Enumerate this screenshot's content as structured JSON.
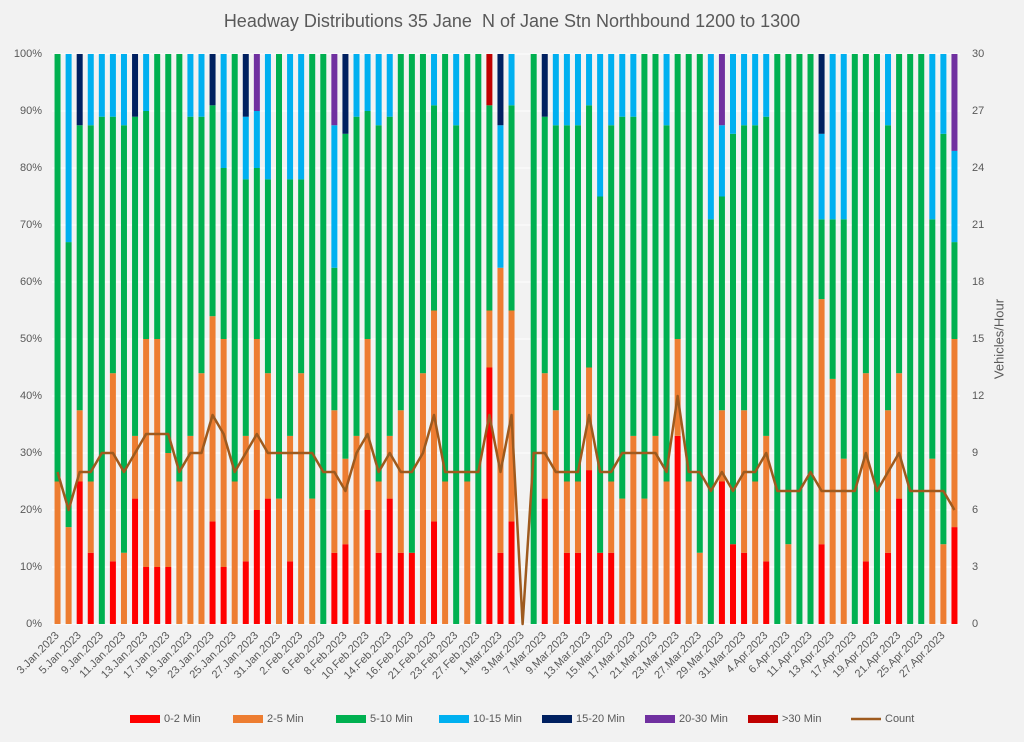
{
  "chart_data": {
    "type": "bar",
    "stacked": true,
    "title": "Headway Distributions 35 Jane  N of Jane Stn Northbound 1200 to 1300",
    "y2_label": "Vehicles/Hour",
    "categories": [
      "3.Jan.2023",
      null,
      "5.Jan.2023",
      null,
      "9.Jan.2023",
      null,
      "11.Jan.2023",
      null,
      "13.Jan.2023",
      null,
      "17.Jan.2023",
      null,
      "19.Jan.2023",
      null,
      "23.Jan.2023",
      null,
      "25.Jan.2023",
      null,
      "27.Jan.2023",
      null,
      "31.Jan.2023",
      null,
      "2.Feb.2023",
      null,
      "6.Feb.2023",
      null,
      "8.Feb.2023",
      null,
      "10.Feb.2023",
      null,
      "14.Feb.2023",
      null,
      "16.Feb.2023",
      null,
      "21.Feb.2023",
      null,
      "23.Feb.2023",
      null,
      "27.Feb.2023",
      null,
      "1.Mar.2023",
      null,
      "3.Mar.2023",
      null,
      "7.Mar.2023",
      null,
      "9.Mar.2023",
      null,
      "13.Mar.2023",
      null,
      "15.Mar.2023",
      null,
      "17.Mar.2023",
      null,
      "21.Mar.2023",
      null,
      "23.Mar.2023",
      null,
      "27.Mar.2023",
      null,
      "29.Mar.2023",
      null,
      "31.Mar.2023",
      null,
      "4.Apr.2023",
      null,
      "6.Apr.2023",
      null,
      "11.Apr.2023",
      null,
      "13.Apr.2023",
      null,
      "17.Apr.2023",
      null,
      "19.Apr.2023",
      null,
      "21.Apr.2023",
      null,
      "25.Apr.2023",
      null,
      "27.Apr.2023",
      null
    ],
    "series": [
      {
        "name": "0-2 Min",
        "color": "#ff0000",
        "values": [
          0,
          0,
          25,
          12.5,
          0,
          11,
          0,
          22,
          10,
          10,
          10,
          0,
          0,
          0,
          18,
          10,
          0,
          11,
          20,
          22,
          0,
          11,
          0,
          0,
          0,
          12.5,
          14,
          0,
          20,
          12.5,
          22,
          12.5,
          12.5,
          0,
          18,
          0,
          0,
          0,
          0,
          45,
          12.5,
          18,
          0,
          0,
          22,
          0,
          12.5,
          12.5,
          27,
          12.5,
          12.5,
          0,
          0,
          0,
          0,
          0,
          33,
          0,
          0,
          0,
          25,
          14,
          12.5,
          0,
          11,
          0,
          0,
          0,
          0,
          14,
          0,
          0,
          0,
          11,
          0,
          12.5,
          22,
          0,
          0,
          0,
          0,
          17
        ]
      },
      {
        "name": "2-5 Min",
        "color": "#ed7d31",
        "values": [
          25,
          17,
          12.5,
          12.5,
          0,
          33,
          12.5,
          11,
          40,
          40,
          20,
          25,
          33,
          44,
          36,
          40,
          25,
          22,
          30,
          22,
          22,
          22,
          44,
          22,
          0,
          25,
          15,
          33,
          30,
          12.5,
          11,
          25,
          0,
          44,
          37,
          25,
          0,
          25,
          0,
          10,
          50,
          37,
          0,
          0,
          22,
          37.5,
          12.5,
          12.5,
          18,
          0,
          12.5,
          22,
          33,
          22,
          33,
          25,
          17,
          25,
          12.5,
          0,
          12.5,
          0,
          25,
          25,
          22,
          0,
          14,
          0,
          0,
          43,
          43,
          29,
          0,
          33,
          0,
          25,
          22,
          0,
          0,
          29,
          14,
          33
        ]
      },
      {
        "name": "5-10 Min",
        "color": "#00b050",
        "values": [
          75,
          50,
          50,
          62.5,
          89,
          45,
          75,
          56,
          40,
          50,
          70,
          75,
          56,
          45,
          37,
          30,
          75,
          45,
          30,
          34,
          78,
          45,
          34,
          78,
          100,
          25,
          57,
          56,
          40,
          62.5,
          56,
          62.5,
          87.5,
          56,
          36,
          75,
          87.5,
          75,
          100,
          36,
          0,
          36,
          0,
          100,
          45,
          50,
          62.5,
          62.5,
          46,
          62.5,
          62.5,
          67,
          56,
          78,
          67,
          62.5,
          50,
          75,
          87.5,
          71,
          37.5,
          72,
          50,
          62.5,
          56,
          100,
          86,
          100,
          100,
          14,
          28,
          42,
          100,
          56,
          100,
          50,
          56,
          100,
          100,
          42,
          72,
          17
        ]
      },
      {
        "name": "10-15 Min",
        "color": "#00b0f0",
        "values": [
          0,
          33,
          0,
          12.5,
          11,
          11,
          12.5,
          0,
          10,
          0,
          0,
          0,
          11,
          11,
          0,
          20,
          0,
          11,
          10,
          22,
          0,
          22,
          22,
          0,
          0,
          25,
          0,
          11,
          10,
          12.5,
          11,
          0,
          0,
          0,
          9,
          0,
          12.5,
          0,
          0,
          0,
          25,
          9,
          0,
          0,
          0,
          12.5,
          12.5,
          12.5,
          9,
          25,
          12.5,
          11,
          11,
          0,
          0,
          12.5,
          0,
          0,
          0,
          29,
          12.5,
          14,
          12.5,
          12.5,
          11,
          0,
          0,
          0,
          0,
          15,
          29,
          29,
          0,
          0,
          0,
          12.5,
          0,
          0,
          0,
          29,
          14,
          16
        ]
      },
      {
        "name": "15-20 Min",
        "color": "#002060",
        "values": [
          0,
          0,
          12.5,
          0,
          0,
          0,
          0,
          11,
          0,
          0,
          0,
          0,
          0,
          0,
          9,
          0,
          0,
          11,
          0,
          0,
          0,
          0,
          0,
          0,
          0,
          0,
          14,
          0,
          0,
          0,
          0,
          0,
          0,
          0,
          0,
          0,
          0,
          0,
          0,
          0,
          12.5,
          0,
          0,
          0,
          11,
          0,
          0,
          0,
          0,
          0,
          0,
          0,
          0,
          0,
          0,
          0,
          0,
          0,
          0,
          0,
          0,
          0,
          0,
          0,
          0,
          0,
          0,
          0,
          0,
          14,
          0,
          0,
          0,
          0,
          0,
          0,
          0,
          0,
          0,
          0,
          0,
          0
        ]
      },
      {
        "name": "20-30 Min",
        "color": "#7030a0",
        "values": [
          0,
          0,
          0,
          0,
          0,
          0,
          0,
          0,
          0,
          0,
          0,
          0,
          0,
          0,
          0,
          0,
          0,
          0,
          10,
          0,
          0,
          0,
          0,
          0,
          0,
          12.5,
          0,
          0,
          0,
          0,
          0,
          0,
          0,
          0,
          0,
          0,
          0,
          0,
          0,
          0,
          0,
          0,
          0,
          0,
          0,
          0,
          0,
          0,
          0,
          0,
          0,
          0,
          0,
          0,
          0,
          0,
          0,
          0,
          0,
          0,
          12.5,
          0,
          0,
          0,
          0,
          0,
          0,
          0,
          0,
          0,
          0,
          0,
          0,
          0,
          0,
          0,
          0,
          0,
          0,
          0,
          0,
          17
        ]
      },
      {
        "name": ">30 Min",
        "color": "#c00000",
        "values": [
          0,
          0,
          0,
          0,
          0,
          0,
          0,
          0,
          0,
          0,
          0,
          0,
          0,
          0,
          0,
          0,
          0,
          0,
          0,
          0,
          0,
          0,
          0,
          0,
          0,
          0,
          0,
          0,
          0,
          0,
          0,
          0,
          0,
          0,
          0,
          0,
          0,
          0,
          0,
          9,
          0,
          0,
          0,
          0,
          0,
          0,
          0,
          0,
          0,
          0,
          0,
          0,
          0,
          0,
          0,
          0,
          0,
          0,
          0,
          0,
          0,
          0,
          0,
          0,
          0,
          0,
          0,
          0,
          0,
          0,
          0,
          0,
          0,
          0,
          0,
          0,
          0,
          0,
          0,
          0,
          0,
          0
        ]
      },
      {
        "name": "Count",
        "color": "#9e5a1e",
        "type": "line",
        "axis": "y2",
        "values": [
          8,
          6,
          8,
          8,
          9,
          9,
          8,
          9,
          10,
          10,
          10,
          8,
          9,
          9,
          11,
          10,
          8,
          9,
          10,
          9,
          9,
          9,
          9,
          9,
          8,
          8,
          7,
          9,
          10,
          8,
          9,
          8,
          8,
          9,
          11,
          8,
          8,
          8,
          8,
          11,
          8,
          11,
          0,
          9,
          9,
          8,
          8,
          8,
          11,
          8,
          8,
          9,
          9,
          9,
          9,
          8,
          12,
          8,
          8,
          7,
          8,
          7,
          8,
          8,
          9,
          7,
          7,
          7,
          8,
          7,
          7,
          7,
          7,
          9,
          7,
          8,
          9,
          7,
          7,
          7,
          7,
          6
        ]
      }
    ],
    "ylim": [
      0,
      100
    ],
    "yticks": [
      {
        "value": 0,
        "label": "0%"
      },
      {
        "value": 10,
        "label": "10%"
      },
      {
        "value": 20,
        "label": "20%"
      },
      {
        "value": 30,
        "label": "30%"
      },
      {
        "value": 40,
        "label": "40%"
      },
      {
        "value": 50,
        "label": "50%"
      },
      {
        "value": 60,
        "label": "60%"
      },
      {
        "value": 70,
        "label": "70%"
      },
      {
        "value": 80,
        "label": "80%"
      },
      {
        "value": 90,
        "label": "90%"
      },
      {
        "value": 100,
        "label": "100%"
      }
    ],
    "y2lim": [
      0,
      30
    ],
    "y2ticks": [
      0,
      3,
      6,
      9,
      12,
      15,
      18,
      21,
      24,
      27,
      30
    ],
    "grid": true,
    "legend": "bottom"
  }
}
